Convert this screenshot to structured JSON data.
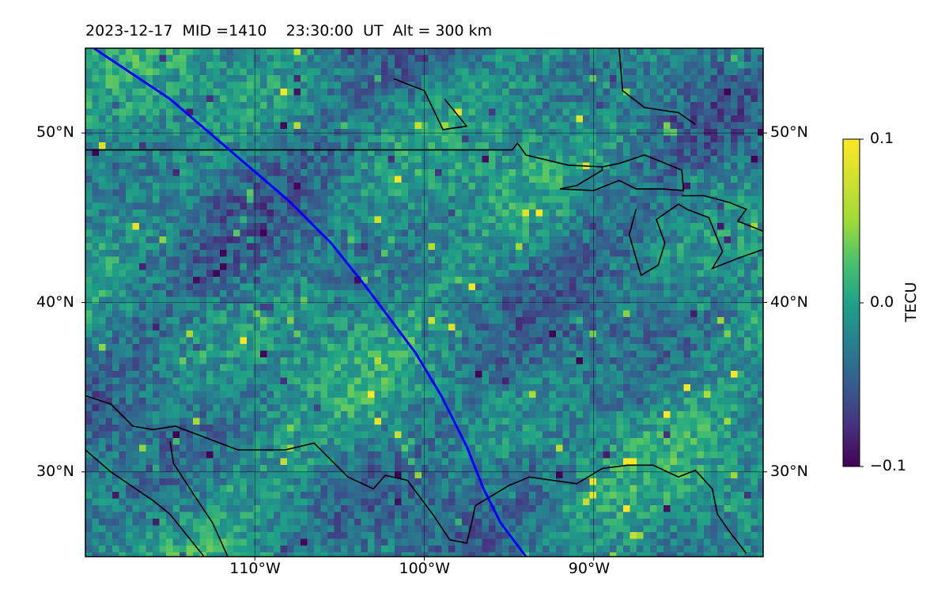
{
  "figure": {
    "title": "2023-12-17  MID =1410    23:30:00  UT  Alt = 300 km"
  },
  "map": {
    "extent": {
      "lon_min": -120,
      "lon_max": -80,
      "lat_min": 25,
      "lat_max": 55
    },
    "lat_ticks": [
      {
        "value": 50,
        "label": "50°N"
      },
      {
        "value": 40,
        "label": "40°N"
      },
      {
        "value": 30,
        "label": "30°N"
      }
    ],
    "lon_ticks": [
      {
        "value": -110,
        "label": "110°W"
      },
      {
        "value": -100,
        "label": "100°W"
      },
      {
        "value": -90,
        "label": "90°W"
      }
    ],
    "gridlines": true,
    "colormap": "viridis"
  },
  "colorbar": {
    "label": "TECU",
    "min": -0.1,
    "max": 0.1,
    "ticks": [
      {
        "value": 0.1,
        "label": "0.1"
      },
      {
        "value": 0.0,
        "label": "0.0"
      },
      {
        "value": -0.1,
        "label": "−0.1"
      }
    ]
  },
  "track": {
    "color": "#0000ff",
    "points": [
      [
        -119.5,
        55
      ],
      [
        -115,
        52
      ],
      [
        -111.5,
        49
      ],
      [
        -108,
        46
      ],
      [
        -105.5,
        43.5
      ],
      [
        -103.5,
        41
      ],
      [
        -102,
        39
      ],
      [
        -100.5,
        37
      ],
      [
        -99,
        34.5
      ],
      [
        -97.5,
        31.5
      ],
      [
        -96.5,
        29
      ],
      [
        -95.5,
        27
      ],
      [
        -94,
        25
      ]
    ]
  },
  "coastlines": {
    "color": "#000000",
    "lines": [
      [
        [
          -120,
          49
        ],
        [
          -94.8,
          49
        ],
        [
          -94.5,
          49.4
        ],
        [
          -94,
          48.7
        ],
        [
          -91.5,
          48.1
        ],
        [
          -89.5,
          48
        ]
      ],
      [
        [
          -120,
          34.5
        ],
        [
          -118.5,
          34
        ],
        [
          -117.2,
          32.7
        ],
        [
          -116,
          32.5
        ],
        [
          -114.7,
          32.7
        ],
        [
          -111,
          31.3
        ],
        [
          -108.2,
          31.3
        ],
        [
          -106.5,
          31.7
        ],
        [
          -104.5,
          29.7
        ],
        [
          -103,
          29
        ],
        [
          -102.3,
          29.8
        ],
        [
          -101,
          29.5
        ],
        [
          -99.5,
          27.5
        ],
        [
          -98.5,
          26
        ],
        [
          -97.5,
          25.8
        ],
        [
          -97.2,
          27
        ],
        [
          -97,
          28
        ],
        [
          -95,
          29.2
        ],
        [
          -93.8,
          29.7
        ],
        [
          -91,
          29.3
        ],
        [
          -89.5,
          30.2
        ],
        [
          -88,
          30.4
        ],
        [
          -86.5,
          30.4
        ],
        [
          -85,
          29.7
        ],
        [
          -84,
          30.1
        ],
        [
          -83,
          29
        ],
        [
          -82.7,
          27.5
        ],
        [
          -82,
          26.5
        ],
        [
          -81,
          25.2
        ]
      ],
      [
        [
          -120,
          31.3
        ],
        [
          -118.5,
          30
        ],
        [
          -116,
          28.3
        ],
        [
          -115,
          27.5
        ],
        [
          -113,
          25
        ]
      ],
      [
        [
          -115,
          31.8
        ],
        [
          -114.8,
          30.5
        ],
        [
          -113.5,
          28.5
        ],
        [
          -112.5,
          27
        ],
        [
          -111.6,
          25
        ]
      ],
      [
        [
          -88.5,
          55
        ],
        [
          -88.3,
          52.5
        ],
        [
          -87,
          51.5
        ],
        [
          -85,
          51.2
        ],
        [
          -84,
          50.5
        ]
      ],
      [
        [
          -101.8,
          53.2
        ],
        [
          -100,
          52.5
        ],
        [
          -98.9,
          50.2
        ],
        [
          -97.5,
          50.4
        ],
        [
          -98.8,
          52
        ]
      ],
      [
        [
          -89.5,
          48
        ],
        [
          -88.5,
          48.2
        ],
        [
          -87,
          48.7
        ],
        [
          -86,
          48.3
        ],
        [
          -84.8,
          47.8
        ],
        [
          -84.7,
          46.6
        ],
        [
          -86,
          46.7
        ],
        [
          -87.5,
          46.7
        ],
        [
          -88.5,
          47.2
        ],
        [
          -90,
          46.6
        ],
        [
          -92,
          46.7
        ],
        [
          -91,
          46.9
        ],
        [
          -89.5,
          47.8
        ],
        [
          -89.5,
          48
        ]
      ],
      [
        [
          -87.5,
          45.5
        ],
        [
          -87.9,
          44
        ],
        [
          -87.5,
          42.6
        ],
        [
          -87.2,
          41.6
        ],
        [
          -86.2,
          42.2
        ],
        [
          -85.8,
          43.5
        ],
        [
          -86.3,
          44.9
        ],
        [
          -85,
          45.8
        ],
        [
          -84.5,
          45.5
        ],
        [
          -83.2,
          45
        ],
        [
          -82.4,
          43
        ],
        [
          -83,
          42
        ],
        [
          -81.5,
          42.6
        ],
        [
          -79.8,
          43.2
        ],
        [
          -79.3,
          43.6
        ],
        [
          -80,
          44
        ]
      ],
      [
        [
          -84.8,
          46.3
        ],
        [
          -83.5,
          46.3
        ],
        [
          -82,
          45.9
        ],
        [
          -81,
          45.5
        ],
        [
          -81.5,
          44.8
        ],
        [
          -80,
          44.2
        ]
      ]
    ]
  }
}
